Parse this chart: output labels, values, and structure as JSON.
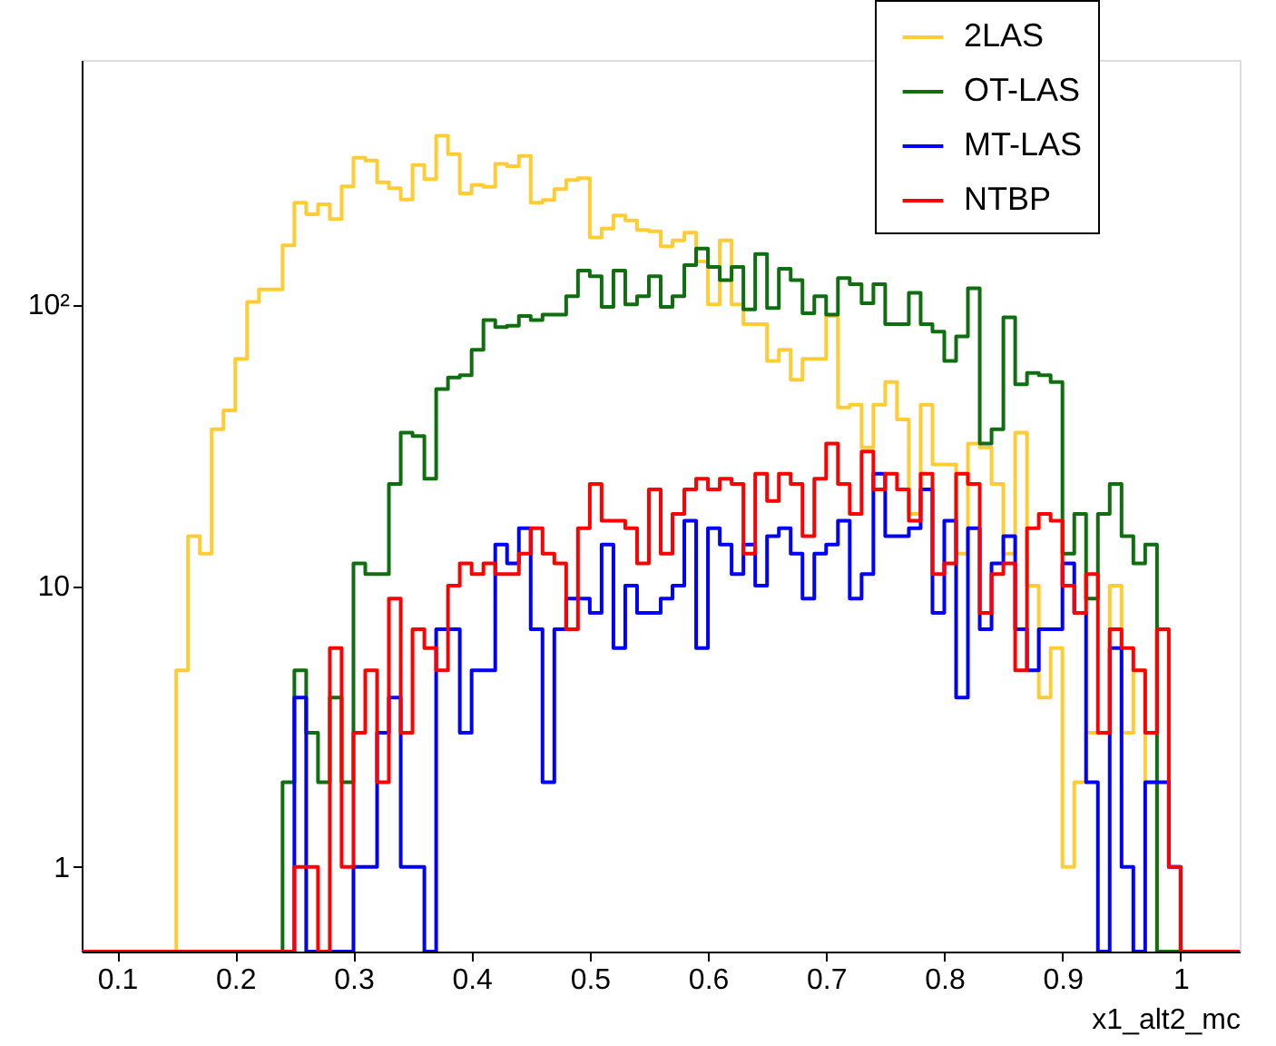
{
  "chart_data": {
    "type": "histogram",
    "xlabel": "x1_alt2_mc",
    "bins": [
      0.07,
      0.08,
      0.09,
      0.1,
      0.11,
      0.12,
      0.13,
      0.14,
      0.15,
      0.16,
      0.17,
      0.18,
      0.19,
      0.2,
      0.21,
      0.22,
      0.23,
      0.24,
      0.25,
      0.26,
      0.27,
      0.28,
      0.29,
      0.3,
      0.31,
      0.32,
      0.33,
      0.34,
      0.35,
      0.36,
      0.37,
      0.38,
      0.39,
      0.4,
      0.41,
      0.42,
      0.43,
      0.44,
      0.45,
      0.46,
      0.47,
      0.48,
      0.49,
      0.5,
      0.51,
      0.52,
      0.53,
      0.54,
      0.55,
      0.56,
      0.57,
      0.58,
      0.59,
      0.6,
      0.61,
      0.62,
      0.63,
      0.64,
      0.65,
      0.66,
      0.67,
      0.68,
      0.69,
      0.7,
      0.71,
      0.72,
      0.73,
      0.74,
      0.75,
      0.76,
      0.77,
      0.78,
      0.79,
      0.8,
      0.81,
      0.82,
      0.83,
      0.84,
      0.85,
      0.86,
      0.87,
      0.88,
      0.89,
      0.9,
      0.91,
      0.92,
      0.93,
      0.94,
      0.95,
      0.96,
      0.97,
      0.98,
      0.99,
      1.0,
      1.01,
      1.02,
      1.03,
      1.04,
      1.05
    ],
    "series": [
      {
        "name": "2LAS",
        "color": "#ffcc33",
        "values": [
          null,
          null,
          null,
          null,
          null,
          null,
          null,
          null,
          5,
          15,
          13,
          36,
          42,
          64,
          102,
          113,
          113,
          162,
          230,
          209,
          227,
          201,
          263,
          332,
          325,
          272,
          259,
          236,
          313,
          279,
          398,
          342,
          248,
          266,
          262,
          316,
          310,
          337,
          230,
          235,
          257,
          277,
          281,
          173,
          186,
          207,
          199,
          184,
          182,
          161,
          169,
          180,
          142,
          100,
          169,
          100,
          85,
          85,
          63,
          69,
          54,
          64,
          64,
          91,
          43,
          44,
          31,
          44,
          53,
          39,
          18,
          44,
          27,
          27,
          13,
          32,
          31,
          23,
          13,
          35,
          10,
          4,
          6,
          1,
          2,
          3,
          3,
          10,
          3,
          5,
          2,
          null,
          null,
          null,
          null,
          null,
          null,
          null
        ]
      },
      {
        "name": "OT-LAS",
        "color": "#0f6e0f",
        "values": [
          null,
          null,
          null,
          null,
          null,
          null,
          null,
          null,
          null,
          null,
          null,
          null,
          null,
          null,
          null,
          null,
          null,
          2,
          5,
          3,
          2,
          4,
          2,
          12,
          11,
          11,
          23,
          35,
          34,
          24,
          50,
          55,
          56,
          69,
          88,
          83,
          84,
          91,
          88,
          92,
          92,
          107,
          132,
          126,
          98,
          132,
          100,
          107,
          126,
          98,
          107,
          138,
          158,
          136,
          122,
          136,
          96,
          151,
          97,
          134,
          122,
          93,
          107,
          92,
          124,
          118,
          101,
          118,
          85,
          85,
          110,
          85,
          80,
          63,
          77,
          114,
          32,
          36,
          90,
          52,
          57,
          56,
          53,
          13,
          18,
          9,
          18,
          23,
          15,
          12,
          14,
          null,
          null,
          null,
          null,
          null,
          null,
          null
        ]
      },
      {
        "name": "MT-LAS",
        "color": "#0000ff",
        "values": [
          null,
          null,
          null,
          null,
          null,
          null,
          null,
          null,
          null,
          null,
          null,
          null,
          null,
          null,
          null,
          null,
          null,
          null,
          4,
          null,
          null,
          null,
          null,
          1,
          1,
          3,
          4,
          1,
          1,
          null,
          7,
          7,
          3,
          5,
          5,
          14,
          12,
          16,
          7,
          2,
          7,
          9,
          9,
          8,
          14,
          6,
          10,
          8,
          8,
          9,
          10,
          17,
          6,
          16,
          14,
          11,
          14,
          10,
          15,
          16,
          13,
          9,
          13,
          14,
          17,
          9,
          11,
          25,
          15,
          15,
          16,
          22,
          8,
          17,
          4,
          16,
          7,
          12,
          15,
          7,
          5,
          7,
          7,
          12,
          8,
          2,
          null,
          6,
          1,
          null,
          2,
          2,
          1,
          null,
          null,
          null,
          null,
          null
        ]
      },
      {
        "name": "NTBP",
        "color": "#ff0000",
        "values": [
          null,
          null,
          null,
          null,
          null,
          null,
          null,
          null,
          null,
          null,
          null,
          null,
          null,
          null,
          null,
          null,
          null,
          null,
          1,
          1,
          null,
          6,
          1,
          3,
          5,
          2,
          9,
          3,
          7,
          6,
          5,
          10,
          12,
          11,
          12,
          11,
          11,
          13,
          16,
          13,
          12,
          7,
          16,
          23,
          17,
          17,
          16,
          12,
          22,
          13,
          18,
          22,
          24,
          22,
          24,
          23,
          13,
          25,
          20,
          25,
          23,
          15,
          24,
          32,
          23,
          18,
          30,
          22,
          25,
          22,
          17,
          25,
          11,
          12,
          25,
          23,
          8,
          11,
          12,
          5,
          16,
          18,
          17,
          10,
          8,
          11,
          3,
          7,
          6,
          5,
          3,
          7,
          1,
          null,
          null,
          null,
          null,
          null
        ]
      }
    ],
    "xlim": [
      0.07,
      1.05
    ],
    "xticks": [
      0.1,
      0.2,
      0.3,
      0.4,
      0.5,
      0.6,
      0.7,
      0.8,
      0.9,
      1
    ],
    "ylim": [
      0.5,
      740
    ],
    "yticks": [
      1,
      10,
      {
        "value": 100,
        "label": "10²"
      }
    ],
    "log": true,
    "grid": false,
    "legend": "top right"
  }
}
